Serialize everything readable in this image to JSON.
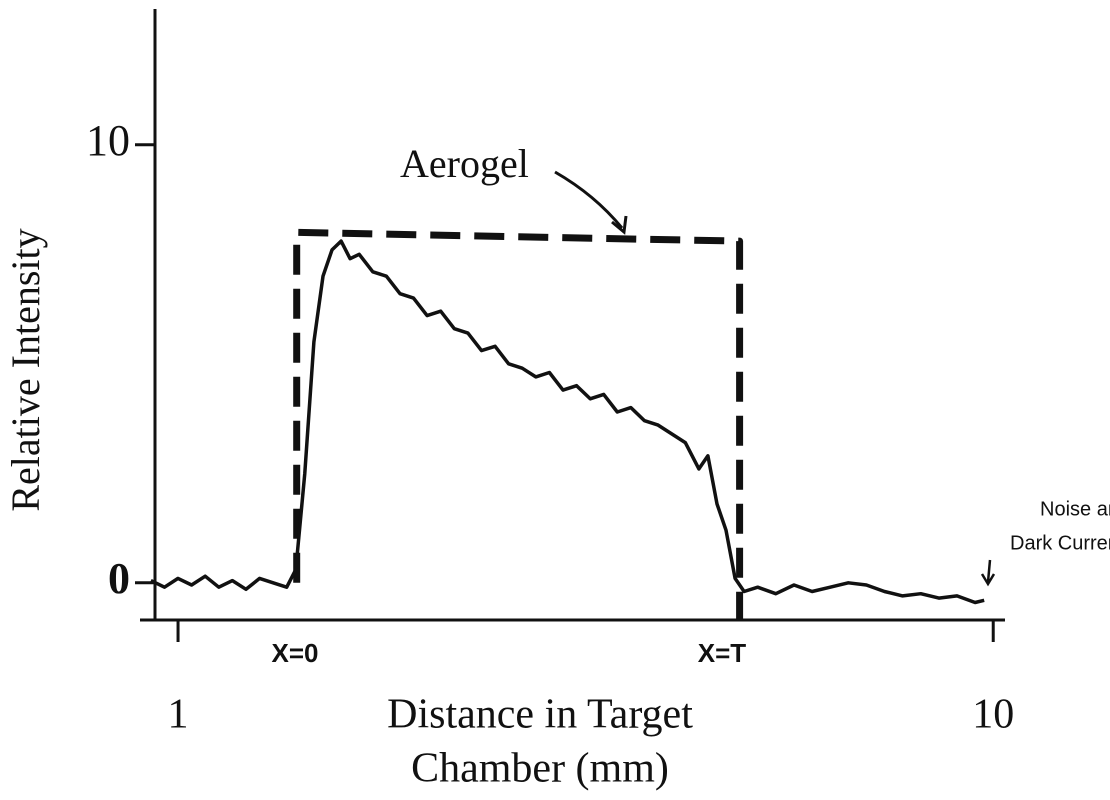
{
  "chart_data": {
    "type": "line",
    "y_label": "Relative Intensity",
    "x_label": [
      "Distance in Target",
      "Chamber (mm)"
    ],
    "xlim": [
      0.58,
      10.13
    ],
    "ylim": [
      -0.85,
      13.1
    ],
    "xticks": [
      1,
      10
    ],
    "yticks": [
      0,
      10
    ],
    "annotations": [
      "X=0",
      "X=T",
      "Noise and",
      "Dark Current"
    ],
    "series": [
      {
        "name": "Aerogel",
        "color": "#111111",
        "dashed": true,
        "x": [
          2.31,
          2.31,
          7.2,
          7.2
        ],
        "values": [
          0,
          8.0,
          7.8,
          -0.85
        ]
      },
      {
        "color": "#111111",
        "dashed": false,
        "x": [
          0.7,
          0.85,
          1.0,
          1.15,
          1.3,
          1.45,
          1.6,
          1.75,
          1.9,
          2.05,
          2.2,
          2.3,
          2.4,
          2.5,
          2.6,
          2.7,
          2.8,
          2.9,
          3.0,
          3.15,
          3.3,
          3.45,
          3.6,
          3.75,
          3.9,
          4.05,
          4.2,
          4.35,
          4.5,
          4.65,
          4.8,
          4.95,
          5.1,
          5.25,
          5.4,
          5.55,
          5.7,
          5.85,
          6.0,
          6.15,
          6.3,
          6.45,
          6.6,
          6.75,
          6.85,
          6.95,
          7.05,
          7.15,
          7.25,
          7.4,
          7.6,
          7.8,
          8.0,
          8.2,
          8.4,
          8.6,
          8.8,
          9.0,
          9.2,
          9.4,
          9.6,
          9.8,
          9.9
        ],
        "values": [
          0.05,
          -0.1,
          0.1,
          -0.05,
          0.15,
          -0.1,
          0.05,
          -0.15,
          0.1,
          0.0,
          -0.1,
          0.3,
          2.5,
          5.5,
          7.0,
          7.6,
          7.8,
          7.4,
          7.5,
          7.1,
          7.0,
          6.6,
          6.5,
          6.1,
          6.2,
          5.8,
          5.7,
          5.3,
          5.4,
          5.0,
          4.9,
          4.7,
          4.8,
          4.4,
          4.5,
          4.2,
          4.3,
          3.9,
          4.0,
          3.7,
          3.6,
          3.4,
          3.2,
          2.6,
          2.9,
          1.8,
          1.2,
          0.1,
          -0.2,
          -0.1,
          -0.25,
          -0.05,
          -0.2,
          -0.1,
          0.0,
          -0.05,
          -0.2,
          -0.3,
          -0.25,
          -0.35,
          -0.3,
          -0.45,
          -0.4
        ]
      }
    ]
  }
}
